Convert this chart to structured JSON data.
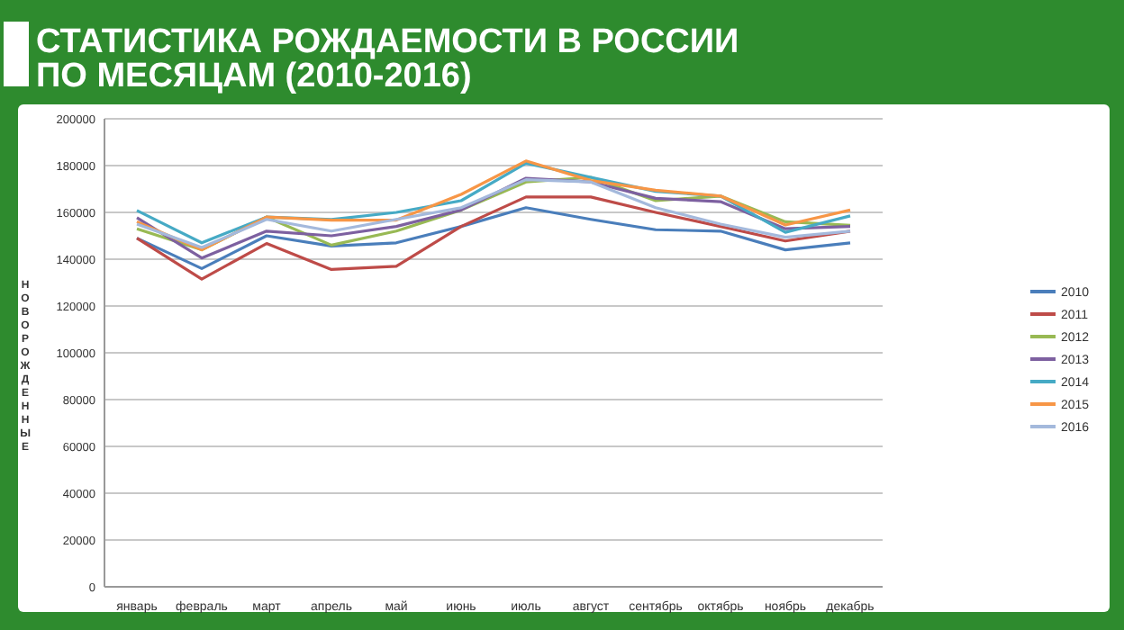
{
  "chart_data": {
    "type": "line",
    "title": "СТАТИСТИКА РОЖДАЕМОСТИ В РОССИИ ПО МЕСЯЦАМ (2010-2016)",
    "ylabel": "НОВОРОЖДЕННЫЕ",
    "categories": [
      "январь",
      "февраль",
      "март",
      "апрель",
      "май",
      "июнь",
      "июль",
      "август",
      "сентябрь",
      "октябрь",
      "ноябрь",
      "декабрь"
    ],
    "series": [
      {
        "name": "2010",
        "color": "#4a7ebb",
        "values": [
          149000,
          136000,
          150000,
          145600,
          147000,
          154000,
          162000,
          157000,
          152600,
          152000,
          144000,
          147000
        ]
      },
      {
        "name": "2011",
        "color": "#be4b48",
        "values": [
          149000,
          131500,
          146700,
          135600,
          137000,
          154000,
          166600,
          166600,
          160000,
          154000,
          147800,
          152000
        ]
      },
      {
        "name": "2012",
        "color": "#98b954",
        "values": [
          153000,
          144000,
          158000,
          146000,
          152000,
          161000,
          173000,
          175000,
          165000,
          167000,
          156000,
          154500
        ]
      },
      {
        "name": "2013",
        "color": "#7d60a0",
        "values": [
          157700,
          140500,
          152000,
          150000,
          154000,
          161000,
          174600,
          173000,
          166000,
          164600,
          153000,
          154000
        ]
      },
      {
        "name": "2014",
        "color": "#46aac5",
        "values": [
          160800,
          147000,
          158000,
          157000,
          160000,
          165000,
          181000,
          175000,
          169000,
          167000,
          151500,
          158500
        ]
      },
      {
        "name": "2015",
        "color": "#f79646",
        "values": [
          156000,
          144000,
          158000,
          156700,
          156700,
          167700,
          182000,
          173600,
          169500,
          167000,
          154600,
          161000
        ]
      },
      {
        "name": "2016",
        "color": "#a4b9dc",
        "values": [
          155000,
          145000,
          157000,
          152000,
          157000,
          162000,
          174000,
          173000,
          162000,
          155000,
          149400,
          152000
        ]
      }
    ],
    "ylim": [
      0,
      200000
    ],
    "yticks": [
      0,
      20000,
      40000,
      60000,
      80000,
      100000,
      120000,
      140000,
      160000,
      180000,
      200000
    ],
    "grid": "y",
    "legend": "right",
    "marker": "none",
    "line_style": "solid"
  }
}
